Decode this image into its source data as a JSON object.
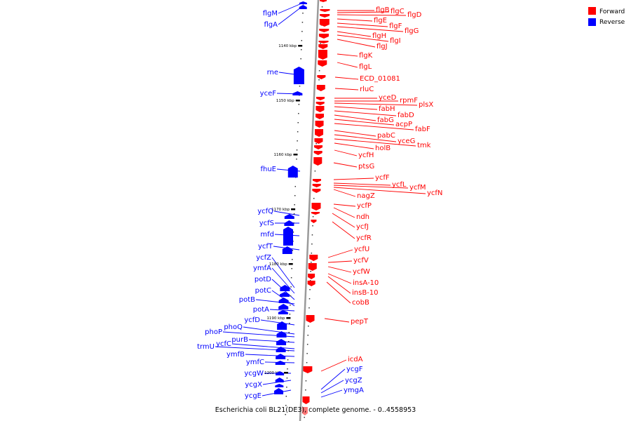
{
  "caption": "Escherichia coli BL21(DE3), complete genome. - 0..4558953",
  "legend": [
    {
      "label": "Forward",
      "color": "#ff0000"
    },
    {
      "label": "Reverse",
      "color": "#0000ff"
    }
  ],
  "colors": {
    "forward": "#ff0000",
    "reverse": "#0000ff",
    "axis": "#9a9a9a"
  },
  "ticks": [
    "1140 kbp",
    "1150 kbp",
    "1160 kbp",
    "1170 kbp",
    "1180 kbp",
    "1190 kbp",
    "1200 kbp"
  ],
  "forward_genes": [
    "flgB",
    "flgC",
    "flgD",
    "flgE",
    "flgF",
    "flgG",
    "flgH",
    "flgI",
    "flgJ",
    "flgK",
    "flgL",
    "ECD_01081",
    "rluC",
    "yceD",
    "rpmF",
    "plsX",
    "fabH",
    "fabD",
    "fabG",
    "acpP",
    "fabF",
    "pabC",
    "yceG",
    "tmk",
    "holB",
    "ycfH",
    "ptsG",
    "ycfF",
    "ycfL",
    "ycfM",
    "ycfN",
    "nagZ",
    "ycfP",
    "ndh",
    "ycfJ",
    "ycfR",
    "ycfU",
    "ycfV",
    "ycfW",
    "insA-10",
    "insB-10",
    "cobB",
    "pepT",
    "icdA"
  ],
  "reverse_genes": [
    "flgM",
    "flgA",
    "rne",
    "yceF",
    "fhuE",
    "ycfQ",
    "ycfS",
    "mfd",
    "ycfT",
    "ycfZ",
    "ymfA",
    "potD",
    "potC",
    "potB",
    "potA",
    "ycfD",
    "phoQ",
    "phoP",
    "purB",
    "ycfC",
    "trmU",
    "ymfB",
    "ymfC",
    "ycgW",
    "ycgX",
    "ycgE",
    "ycgF",
    "ycgZ",
    "ymgA"
  ]
}
